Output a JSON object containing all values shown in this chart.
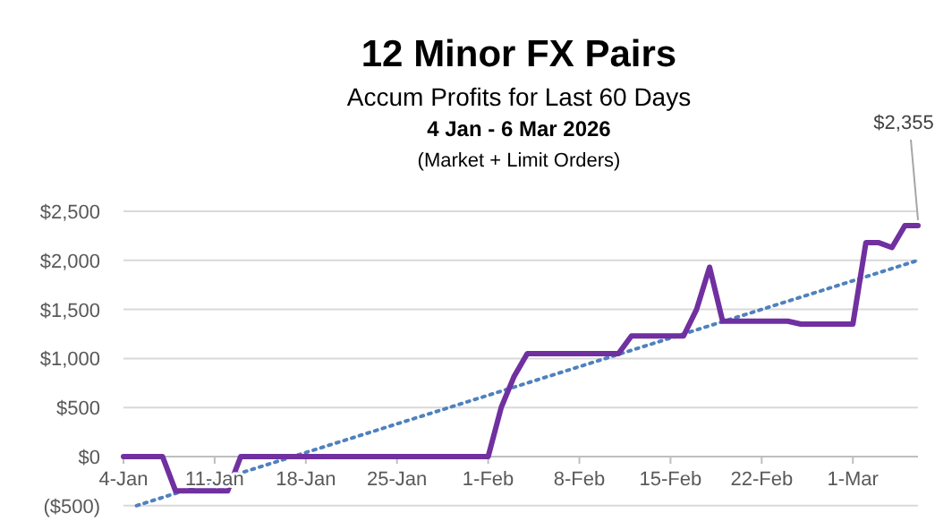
{
  "chart_data": {
    "type": "line",
    "title": "12 Minor FX Pairs",
    "subtitle": "Accum Profits for Last 60 Days",
    "annotations": [
      "4 Jan - 6 Mar 2026",
      "(Market + Limit Orders)",
      {
        "text": "$2,355",
        "x": "2026-03-06",
        "y": 2355
      }
    ],
    "x": [
      "2026-01-04",
      "2026-01-05",
      "2026-01-06",
      "2026-01-07",
      "2026-01-08",
      "2026-01-11",
      "2026-01-12",
      "2026-01-13",
      "2026-02-01",
      "2026-02-02",
      "2026-02-03",
      "2026-02-04",
      "2026-02-11",
      "2026-02-12",
      "2026-02-16",
      "2026-02-17",
      "2026-02-18",
      "2026-02-19",
      "2026-02-24",
      "2026-02-25",
      "2026-03-01",
      "2026-03-02",
      "2026-03-03",
      "2026-03-04",
      "2026-03-05",
      "2026-03-06"
    ],
    "series": [
      {
        "color": "#7030a0",
        "values": [
          0,
          0,
          0,
          0,
          -350,
          -350,
          -350,
          0,
          0,
          500,
          820,
          1050,
          1050,
          1230,
          1230,
          1500,
          1930,
          1380,
          1380,
          1350,
          1350,
          2180,
          2180,
          2130,
          2355,
          2355
        ]
      },
      {
        "type": "line",
        "color": "#4f81bd",
        "line_style": "dotted",
        "x": [
          "2026-01-05",
          "2026-03-06"
        ],
        "values": [
          -500,
          2000
        ]
      }
    ],
    "xlim": [
      "2026-01-04",
      "2026-03-06"
    ],
    "xticks": [
      {
        "value": "2026-01-04",
        "label": "4-Jan"
      },
      {
        "value": "2026-01-11",
        "label": "11-Jan"
      },
      {
        "value": "2026-01-18",
        "label": "18-Jan"
      },
      {
        "value": "2026-01-25",
        "label": "25-Jan"
      },
      {
        "value": "2026-02-01",
        "label": "1-Feb"
      },
      {
        "value": "2026-02-08",
        "label": "8-Feb"
      },
      {
        "value": "2026-02-15",
        "label": "15-Feb"
      },
      {
        "value": "2026-02-22",
        "label": "22-Feb"
      },
      {
        "value": "2026-03-01",
        "label": "1-Mar"
      }
    ],
    "ylim": [
      -500,
      2500
    ],
    "yticks": [
      {
        "value": -500,
        "label": "($500)"
      },
      {
        "value": 0,
        "label": "$0"
      },
      {
        "value": 500,
        "label": "$500"
      },
      {
        "value": 1000,
        "label": "$1,000"
      },
      {
        "value": 1500,
        "label": "$1,500"
      },
      {
        "value": 2000,
        "label": "$2,000"
      },
      {
        "value": 2500,
        "label": "$2,500"
      }
    ],
    "grid": "y",
    "marker": "none",
    "line_style": "solid"
  }
}
